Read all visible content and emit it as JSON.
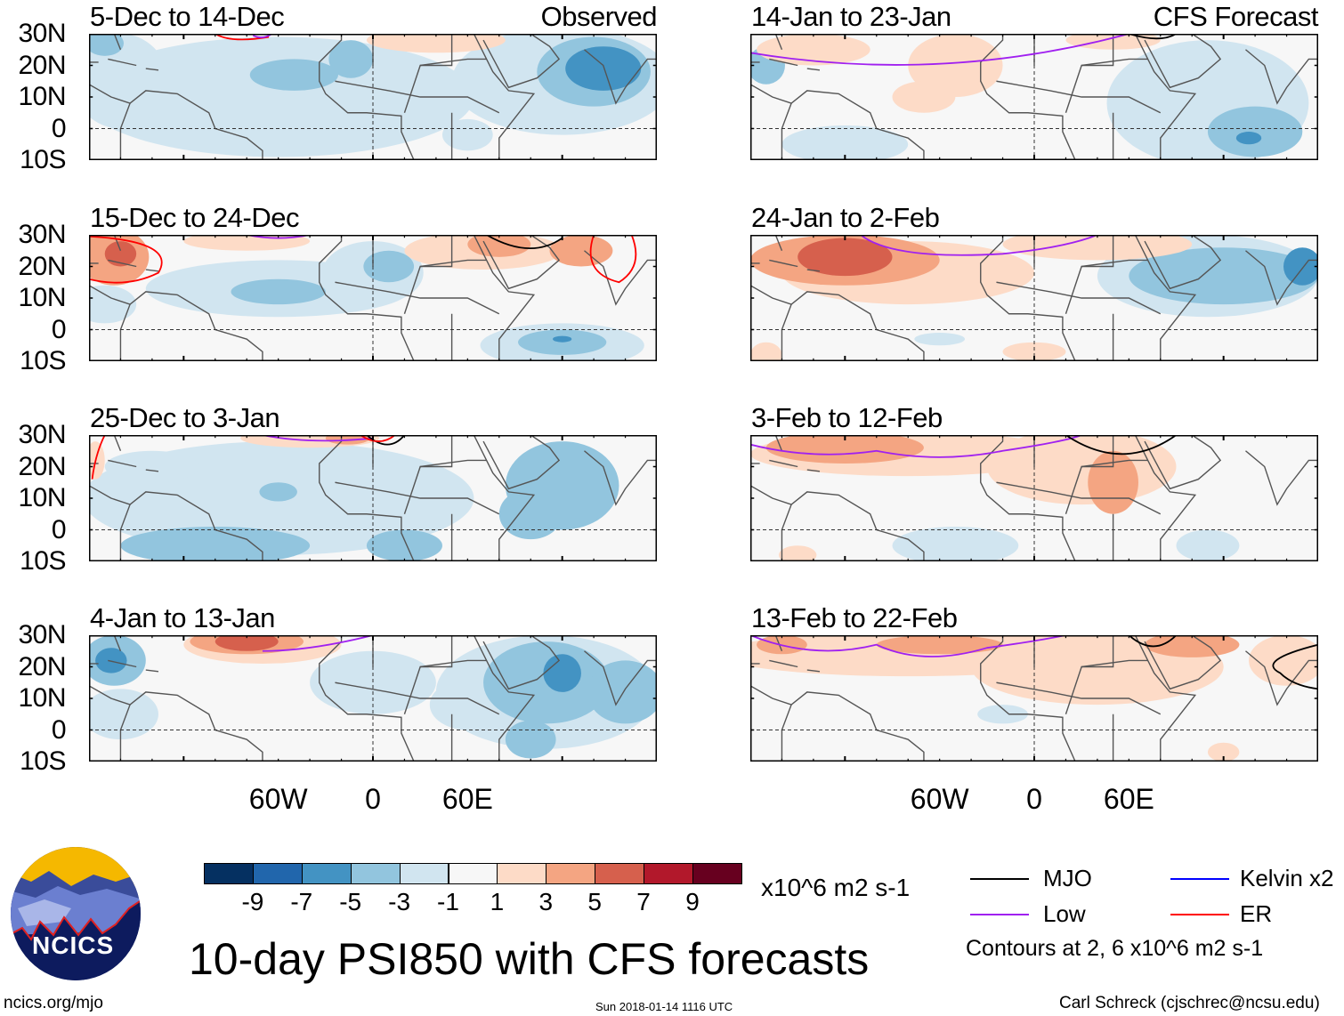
{
  "panels": [
    {
      "title": "5-Dec to 14-Dec",
      "subtitle": "Observed"
    },
    {
      "title": "15-Dec to 24-Dec",
      "subtitle": ""
    },
    {
      "title": "25-Dec to 3-Jan",
      "subtitle": ""
    },
    {
      "title": "4-Jan to 13-Jan",
      "subtitle": ""
    },
    {
      "title": "14-Jan to 23-Jan",
      "subtitle": "CFS Forecast"
    },
    {
      "title": "24-Jan to 2-Feb",
      "subtitle": ""
    },
    {
      "title": "3-Feb to 12-Feb",
      "subtitle": ""
    },
    {
      "title": "13-Feb to 22-Feb",
      "subtitle": ""
    }
  ],
  "lat_labels": [
    "30N",
    "20N",
    "10N",
    "0",
    "10S"
  ],
  "lon_labels": [
    "60W",
    "0",
    "60E"
  ],
  "colorbar": {
    "colors": [
      "#053061",
      "#2166ac",
      "#4393c3",
      "#92c5de",
      "#d1e5f0",
      "#f7f7f7",
      "#fddbc7",
      "#f4a582",
      "#d6604d",
      "#b2182b",
      "#67001f"
    ],
    "labels": [
      "-9",
      "-7",
      "-5",
      "-3",
      "-1",
      "1",
      "3",
      "5",
      "7",
      "9"
    ],
    "units": "x10^6 m2 s-1"
  },
  "legend": {
    "items": [
      {
        "label": "MJO",
        "color": "#000000"
      },
      {
        "label": "Kelvin x2",
        "color": "#0000ff"
      },
      {
        "label": "Low",
        "color": "#a020f0"
      },
      {
        "label": "ER",
        "color": "#ff0000"
      }
    ],
    "note": "Contours at 2, 6 x10^6 m2 s-1"
  },
  "title": "10-day PSI850 with CFS forecasts",
  "logo_text": "NCICS",
  "footer": {
    "left": "ncics.org/mjo",
    "center": "Sun 2018-01-14 1116 UTC",
    "right": "Carl Schreck (cjschrec@ncsu.edu)"
  }
}
